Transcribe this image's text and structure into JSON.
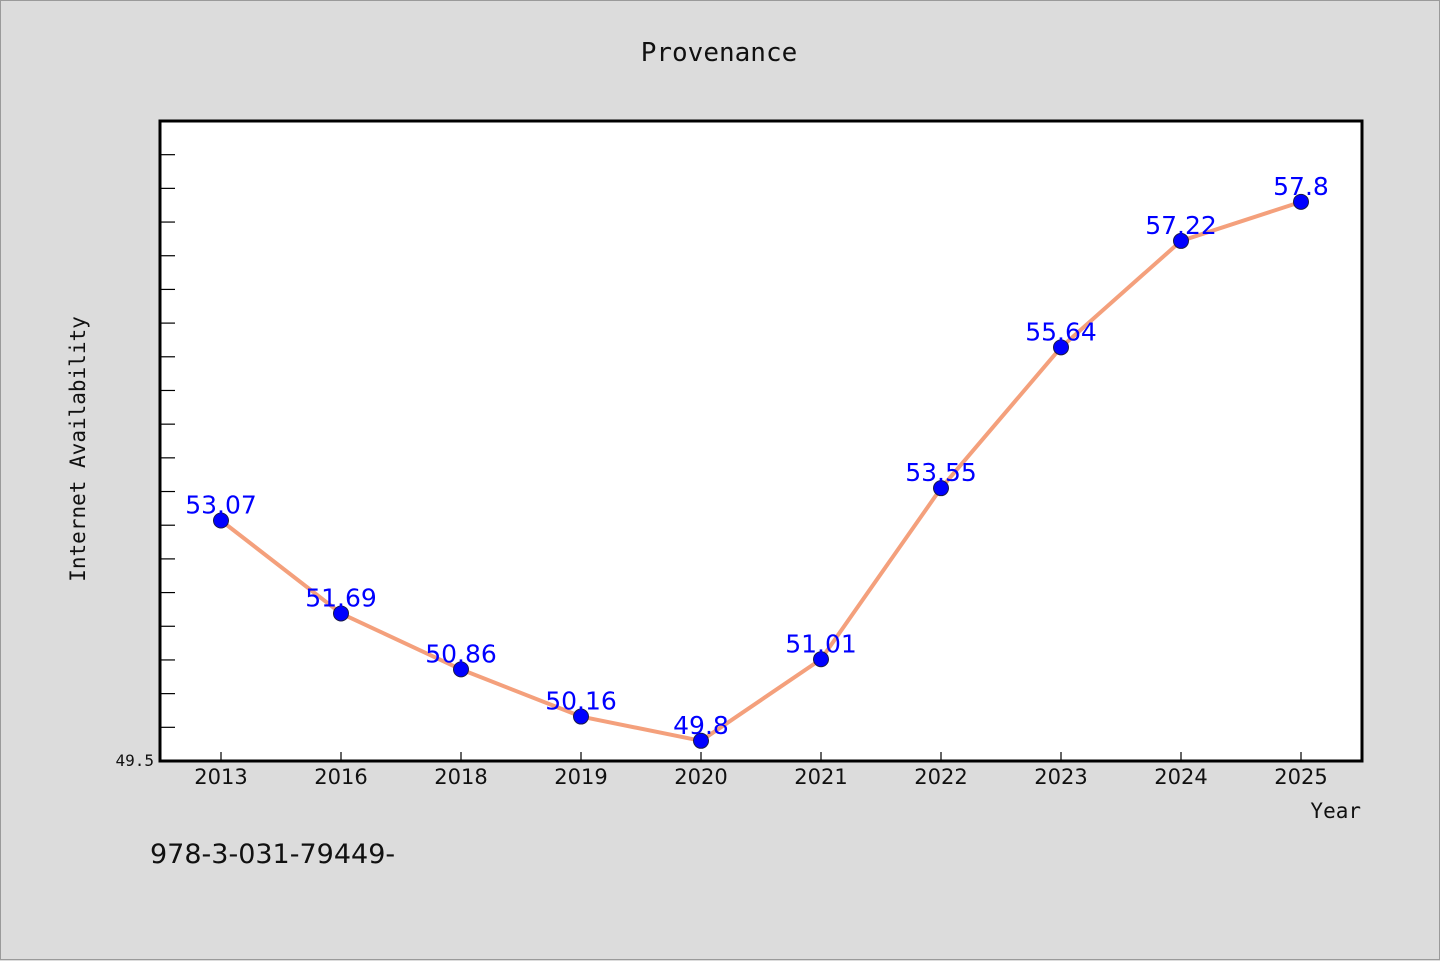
{
  "chart_data": {
    "type": "line",
    "title": "Provenance",
    "xlabel": "Year",
    "ylabel": "Internet Availability",
    "categories": [
      "2013",
      "2016",
      "2018",
      "2019",
      "2020",
      "2021",
      "2022",
      "2023",
      "2024",
      "2025"
    ],
    "series": [
      {
        "values": [
          53.07,
          51.69,
          50.86,
          50.16,
          49.8,
          51.01,
          53.55,
          55.64,
          57.22,
          57.8
        ],
        "labels": [
          "53.07",
          "51.69",
          "50.86",
          "50.16",
          "49.8",
          "51.01",
          "53.55",
          "55.64",
          "57.22",
          "57.8"
        ]
      }
    ],
    "ylim": [
      49.5,
      59
    ],
    "y_tick_labels": [
      "49.5"
    ],
    "y_minor_tick_step": 0.5,
    "grid": false,
    "colors": {
      "line": "#f4a07c",
      "marker": "#0000ff",
      "data_label": "#0000ff",
      "plot_background": "#ffffff",
      "figure_background": "#dcdcdc"
    }
  },
  "footnote": "978-3-031-79449-"
}
